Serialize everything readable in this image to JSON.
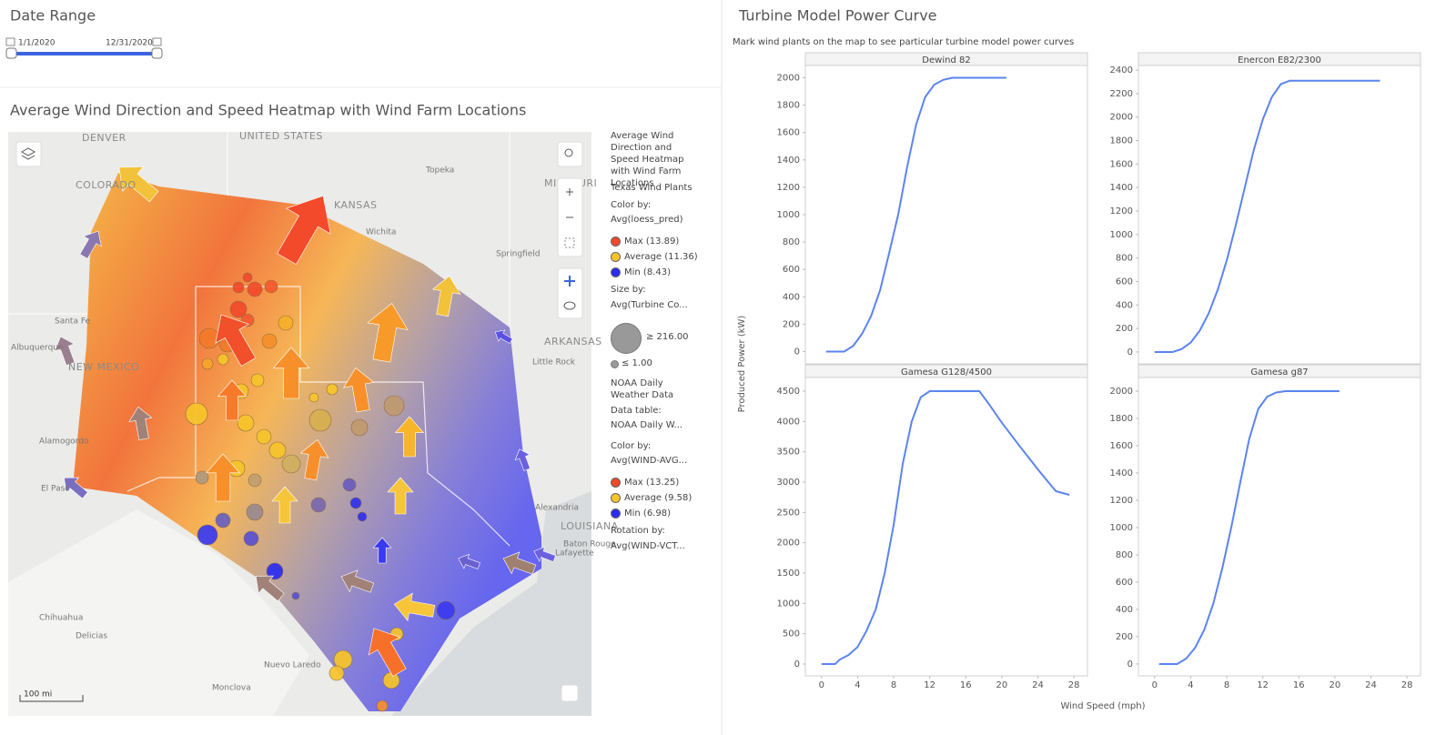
{
  "date_range": {
    "title": "Date Range",
    "start": "1/1/2020",
    "end": "12/31/2020"
  },
  "map_panel": {
    "title": "Average Wind Direction and Speed Heatmap with Wind Farm Locations",
    "places": [
      "DENVER",
      "UNITED STATES",
      "COLORADO",
      "KANSAS",
      "Topeka",
      "MISSOURI",
      "Wichita",
      "Springfield",
      "Santa Fe",
      "Albuquerque",
      "NEW MEXICO",
      "ARKANSAS",
      "Little Rock",
      "Alamogordo",
      "El Paso",
      "Alexandria",
      "LOUISIANA",
      "Baton Rouge",
      "Lafayette",
      "Chihuahua",
      "Delicias",
      "Nuevo Laredo",
      "Monclova"
    ],
    "scale": "100 mi",
    "legend": {
      "title": "Average Wind Direction and Speed Heatmap with Wind Farm Locations",
      "layers": [
        {
          "name": "Texas Wind Plants",
          "color_by_label": "Color by:",
          "color_by": "Avg(loess_pred)",
          "color_items": [
            {
              "label": "Max (13.89)",
              "color": "#f04a2a"
            },
            {
              "label": "Average (11.36)",
              "color": "#f7c52a"
            },
            {
              "label": "Min (8.43)",
              "color": "#2c2cf0"
            }
          ],
          "size_by_label": "Size by:",
          "size_by": "Avg(Turbine Co...",
          "size_max": "≥ 216.00",
          "size_min": "≤ 1.00"
        },
        {
          "name": "NOAA Daily Weather Data",
          "data_table_label": "Data table:",
          "data_table": "NOAA Daily W...",
          "color_by_label": "Color by:",
          "color_by": "Avg(WIND-AVG...",
          "color_items": [
            {
              "label": "Max (13.25)",
              "color": "#f04a2a"
            },
            {
              "label": "Average (9.58)",
              "color": "#f7c52a"
            },
            {
              "label": "Min (6.98)",
              "color": "#2c2cf0"
            }
          ],
          "rotation_by_label": "Rotation by:",
          "rotation_by": "Avg(WIND-VCT..."
        }
      ]
    }
  },
  "power_curve": {
    "title": "Turbine Model Power Curve",
    "subtitle": "Mark wind plants on the map to see particular turbine model power curves",
    "y_label": "Produced Power (kW)",
    "x_label": "Wind Speed (mph)"
  },
  "chart_data": [
    {
      "type": "line",
      "title": "Dewind 82",
      "color": "#5b84f0",
      "x": [
        0.5,
        2.5,
        3.5,
        4.5,
        5.5,
        6.5,
        7.5,
        8.5,
        9.5,
        10.5,
        11.5,
        12.5,
        13.5,
        14.5,
        20.5
      ],
      "values": [
        0,
        0,
        40,
        130,
        260,
        450,
        720,
        1000,
        1350,
        1660,
        1860,
        1950,
        1985,
        2000,
        2000
      ],
      "xlim": [
        -1.8,
        29.5
      ],
      "ylim": [
        -90,
        2090
      ],
      "yticks": [
        0,
        200,
        400,
        600,
        800,
        1000,
        1200,
        1400,
        1600,
        1800,
        2000
      ]
    },
    {
      "type": "line",
      "title": "Enercon E82/2300",
      "color": "#5b84f0",
      "x": [
        0,
        2,
        3,
        4,
        5,
        6,
        7,
        8,
        9,
        10,
        11,
        12,
        13,
        14,
        15,
        25
      ],
      "values": [
        0,
        0,
        25,
        80,
        180,
        330,
        530,
        780,
        1080,
        1400,
        1720,
        1980,
        2170,
        2280,
        2310,
        2310
      ],
      "xlim": [
        -1.8,
        29.5
      ],
      "ylim": [
        -101,
        2439
      ],
      "yticks": [
        0,
        200,
        400,
        600,
        800,
        1000,
        1200,
        1400,
        1600,
        1800,
        2000,
        2200,
        2400
      ]
    },
    {
      "type": "line",
      "title": "Gamesa G128/4500",
      "color": "#5b84f0",
      "x": [
        0,
        1.5,
        2,
        3,
        4,
        5,
        6,
        7,
        8,
        9,
        10,
        11,
        12,
        17.5,
        18.5,
        20,
        22,
        24,
        26,
        27.5
      ],
      "values": [
        0,
        0,
        70,
        150,
        280,
        550,
        900,
        1500,
        2300,
        3300,
        4000,
        4400,
        4500,
        4500,
        4300,
        3980,
        3590,
        3210,
        2850,
        2790
      ],
      "xlim": [
        -1.8,
        29.5
      ],
      "ylim": [
        -195,
        4725
      ],
      "xticks": [
        0,
        4,
        8,
        12,
        16,
        20,
        24,
        28
      ],
      "yticks": [
        0,
        500,
        1000,
        1500,
        2000,
        2500,
        3000,
        3500,
        4000,
        4500
      ]
    },
    {
      "type": "line",
      "title": "Gamesa g87",
      "color": "#5b84f0",
      "x": [
        0.5,
        2.5,
        3.5,
        4.5,
        5.5,
        6.5,
        7.5,
        8.5,
        9.5,
        10.5,
        11.5,
        12.5,
        13.5,
        14.5,
        20.5
      ],
      "values": [
        0,
        0,
        40,
        120,
        250,
        440,
        700,
        1000,
        1330,
        1650,
        1870,
        1960,
        1990,
        2000,
        2000
      ],
      "xlim": [
        -1.8,
        29.5
      ],
      "ylim": [
        -87,
        2100
      ],
      "xticks": [
        0,
        4,
        8,
        12,
        16,
        20,
        24,
        28
      ],
      "yticks": [
        0,
        200,
        400,
        600,
        800,
        1000,
        1200,
        1400,
        1600,
        1800,
        2000
      ]
    }
  ]
}
